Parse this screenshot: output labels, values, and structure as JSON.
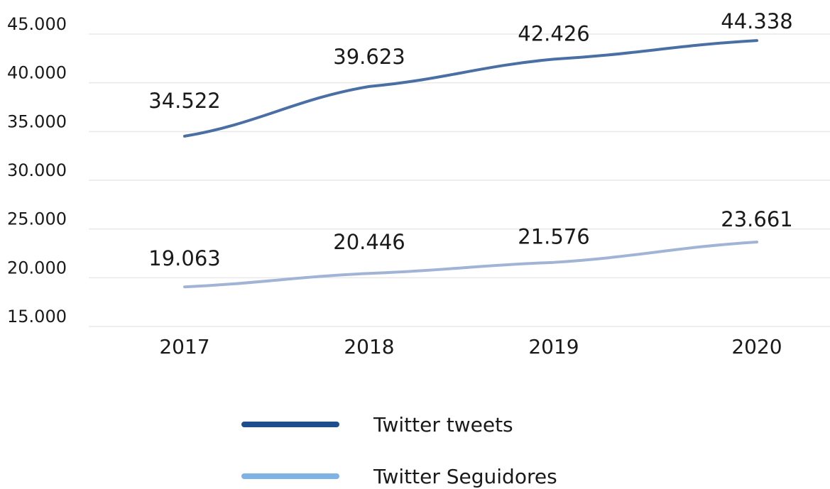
{
  "chart_data": {
    "type": "line",
    "title": "",
    "xlabel": "",
    "ylabel": "",
    "categories": [
      "2017",
      "2018",
      "2019",
      "2020"
    ],
    "ylim": [
      15000,
      45000
    ],
    "yticks": [
      15000,
      20000,
      25000,
      30000,
      35000,
      40000,
      45000
    ],
    "ytick_labels": [
      "15.000",
      "20.000",
      "25.000",
      "30.000",
      "35.000",
      "40.000",
      "45.000"
    ],
    "grid": true,
    "legend_position": "bottom",
    "series": [
      {
        "name": "Twitter tweets",
        "values": [
          34522,
          39623,
          42426,
          44338
        ],
        "labels": [
          "34.522",
          "39.623",
          "42.426",
          "44.338"
        ],
        "color": "#4a6fa5",
        "legend_color": "#1f4e8c"
      },
      {
        "name": "Twitter Seguidores",
        "values": [
          19063,
          20446,
          21576,
          23661
        ],
        "labels": [
          "19.063",
          "20.446",
          "21.576",
          "23.661"
        ],
        "color": "#a2b4d6",
        "legend_color": "#7fb2e5"
      }
    ]
  }
}
